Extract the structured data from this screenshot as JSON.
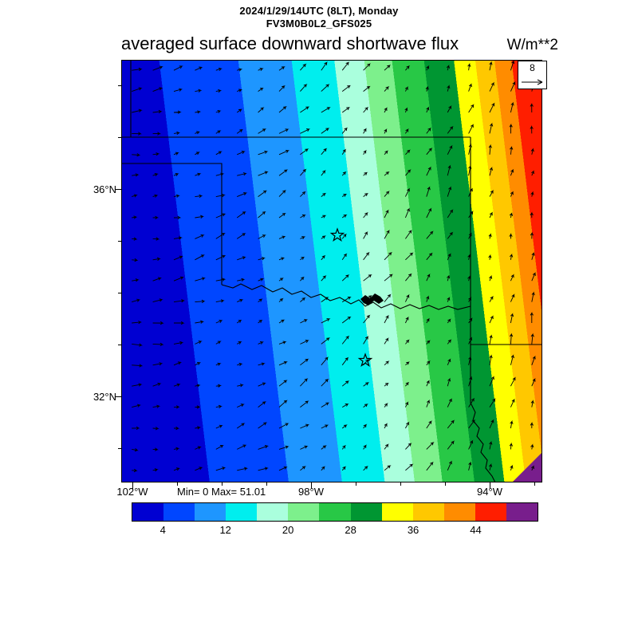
{
  "header": {
    "datetime": "2024/1/29/14UTC (8LT), Monday",
    "model": "FV3M0B0L2_GFS025",
    "title": "averaged surface downward shortwave flux",
    "units": "W/m**2"
  },
  "map": {
    "min_max_label": "Min= 0 Max= 51.01",
    "lat_labels": [
      "36°N",
      "32°N"
    ],
    "lon_labels": [
      "102°W",
      "98°W",
      "94°W"
    ],
    "reference_vector": {
      "label": "8"
    }
  },
  "chart_data": {
    "type": "heatmap",
    "variable": "averaged surface downward shortwave flux",
    "units": "W/m**2",
    "valid_time": "2024/1/29/14UTC (8LT), Monday",
    "model_run": "FV3M0B0L2_GFS025",
    "min": 0,
    "max": 51.01,
    "contour_interval": 4,
    "levels": [
      0,
      4,
      8,
      12,
      16,
      20,
      24,
      28,
      32,
      36,
      40,
      44,
      48,
      52
    ],
    "colorbar_ticks": [
      4,
      12,
      20,
      28,
      36,
      44
    ],
    "band_colors": [
      "#0000d2",
      "#0046ff",
      "#1e96ff",
      "#00eeee",
      "#aaffdd",
      "#7df08c",
      "#28c846",
      "#009632",
      "#ffff00",
      "#ffc800",
      "#ff8c00",
      "#ff1e00",
      "#781e8c"
    ],
    "band_boundaries_frac": [
      0.155,
      0.34,
      0.465,
      0.565,
      0.635,
      0.7,
      0.775,
      0.845,
      0.895,
      0.94,
      0.98
    ],
    "band_tilt": 0.12,
    "wind_reference": 8,
    "lat_tick_labels": [
      "36°N",
      "32°N"
    ],
    "lon_tick_labels": [
      "102°W",
      "98°W",
      "94°W"
    ],
    "legend_position": "bottom"
  }
}
